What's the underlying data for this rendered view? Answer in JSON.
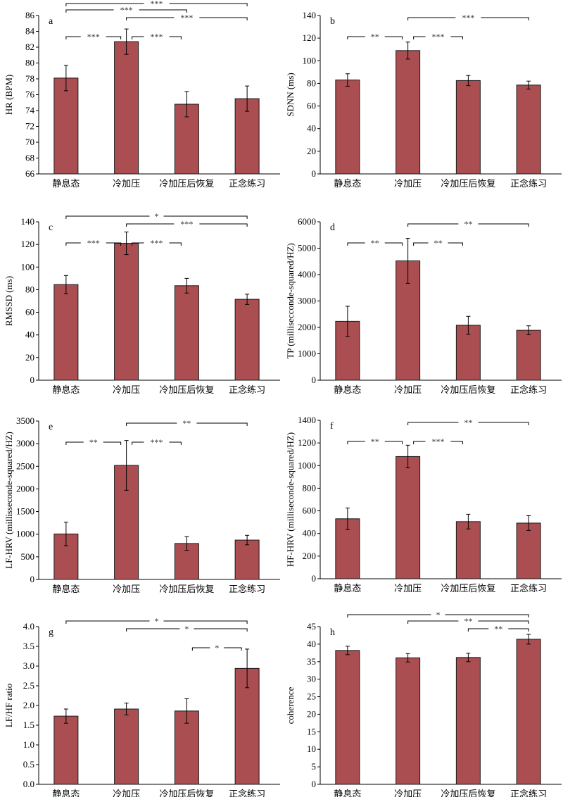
{
  "figure": {
    "bar_color": "#ab4e52",
    "bar_stroke": "#1a1a1a",
    "categories": [
      "静息态",
      "冷加压",
      "冷加压后恢复",
      "正念练习"
    ]
  },
  "chart_data": [
    {
      "panel": "a",
      "type": "bar",
      "ylabel": "HR (BPM)",
      "ylim": [
        66,
        86
      ],
      "yticks": [
        66,
        68,
        70,
        72,
        74,
        76,
        78,
        80,
        82,
        84,
        86
      ],
      "ytick_decimals": 0,
      "categories": [
        "静息态",
        "冷加压",
        "冷加压后恢复",
        "正念练习"
      ],
      "values": [
        78.1,
        82.7,
        74.8,
        75.5
      ],
      "errors": [
        1.6,
        1.6,
        1.6,
        1.6
      ],
      "significance": [
        {
          "from": 0,
          "to": 3,
          "label": "***",
          "level": 0
        },
        {
          "from": 0,
          "to": 2,
          "label": "***",
          "level": 1
        },
        {
          "from": 1,
          "to": 3,
          "label": "***",
          "level": 2
        },
        {
          "from": 0,
          "to": 1,
          "label": "***",
          "level": 3
        },
        {
          "from": 1,
          "to": 2,
          "label": "***",
          "level": 3
        }
      ]
    },
    {
      "panel": "b",
      "type": "bar",
      "ylabel": "SDNN (ms)",
      "ylim": [
        0,
        140
      ],
      "yticks": [
        0,
        20,
        40,
        60,
        80,
        100,
        120,
        140
      ],
      "ytick_decimals": 0,
      "categories": [
        "静息态",
        "冷加压",
        "冷加压后恢复",
        "正念练习"
      ],
      "values": [
        83,
        109,
        82.5,
        78.5
      ],
      "errors": [
        5.5,
        7.5,
        4.5,
        3.5
      ],
      "significance": [
        {
          "from": 1,
          "to": 3,
          "label": "***",
          "level": 2
        },
        {
          "from": 0,
          "to": 1,
          "label": "**",
          "level": 3
        },
        {
          "from": 1,
          "to": 2,
          "label": "***",
          "level": 3
        }
      ]
    },
    {
      "panel": "c",
      "type": "bar",
      "ylabel": "RMSSD (ms)",
      "ylim": [
        0,
        140
      ],
      "yticks": [
        0,
        20,
        40,
        60,
        80,
        100,
        120,
        140
      ],
      "ytick_decimals": 0,
      "categories": [
        "静息态",
        "冷加压",
        "冷加压后恢复",
        "正念练习"
      ],
      "values": [
        84.5,
        121,
        83.5,
        71.5
      ],
      "errors": [
        8,
        10,
        6.5,
        4.5
      ],
      "significance": [
        {
          "from": 0,
          "to": 3,
          "label": "*",
          "level": 1
        },
        {
          "from": 1,
          "to": 3,
          "label": "***",
          "level": 2
        },
        {
          "from": 0,
          "to": 1,
          "label": "***",
          "level": 3
        },
        {
          "from": 1,
          "to": 2,
          "label": "***",
          "level": 3
        }
      ]
    },
    {
      "panel": "d",
      "type": "bar",
      "ylabel": "TP (millisecconde-squared/HZ)",
      "ylim": [
        0,
        6000
      ],
      "yticks": [
        0,
        1000,
        2000,
        3000,
        4000,
        5000,
        6000
      ],
      "ytick_decimals": 0,
      "categories": [
        "静息态",
        "冷加压",
        "冷加压后恢复",
        "正念练习"
      ],
      "values": [
        2230,
        4520,
        2080,
        1890
      ],
      "errors": [
        570,
        850,
        340,
        170
      ],
      "significance": [
        {
          "from": 1,
          "to": 3,
          "label": "**",
          "level": 2
        },
        {
          "from": 0,
          "to": 1,
          "label": "**",
          "level": 3
        },
        {
          "from": 1,
          "to": 2,
          "label": "**",
          "level": 3
        }
      ]
    },
    {
      "panel": "e",
      "type": "bar",
      "ylabel": "LF-HRV (millisseconde-squared/HZ)",
      "ylim": [
        0,
        3500
      ],
      "yticks": [
        0,
        500,
        1000,
        1500,
        2000,
        2500,
        3000,
        3500
      ],
      "ytick_decimals": 0,
      "categories": [
        "静息态",
        "冷加压",
        "冷加压后恢复",
        "正念练习"
      ],
      "values": [
        1005,
        2520,
        795,
        870
      ],
      "errors": [
        260,
        550,
        150,
        105
      ],
      "significance": [
        {
          "from": 1,
          "to": 3,
          "label": "**",
          "level": 2
        },
        {
          "from": 0,
          "to": 1,
          "label": "**",
          "level": 3
        },
        {
          "from": 1,
          "to": 2,
          "label": "***",
          "level": 3
        }
      ]
    },
    {
      "panel": "f",
      "type": "bar",
      "ylabel": "HF-HRV (milliseconde-squared/HZ)",
      "ylim": [
        0,
        1400
      ],
      "yticks": [
        0,
        200,
        400,
        600,
        800,
        1000,
        1200,
        1400
      ],
      "ytick_decimals": 0,
      "categories": [
        "静息态",
        "冷加压",
        "冷加压后恢复",
        "正念练习"
      ],
      "values": [
        530,
        1080,
        505,
        492
      ],
      "errors": [
        95,
        100,
        65,
        65
      ],
      "significance": [
        {
          "from": 1,
          "to": 3,
          "label": "**",
          "level": 2
        },
        {
          "from": 0,
          "to": 1,
          "label": "**",
          "level": 3
        },
        {
          "from": 1,
          "to": 2,
          "label": "***",
          "level": 3
        }
      ]
    },
    {
      "panel": "g",
      "type": "bar",
      "ylabel": "LF/HF ratio",
      "ylim": [
        0,
        4.0
      ],
      "yticks": [
        0,
        0.5,
        1.0,
        1.5,
        2.0,
        2.5,
        3.0,
        3.5,
        4.0
      ],
      "ytick_decimals": 1,
      "categories": [
        "静息态",
        "冷加压",
        "冷加压后恢复",
        "正念练习"
      ],
      "values": [
        1.73,
        1.91,
        1.86,
        2.94
      ],
      "errors": [
        0.18,
        0.15,
        0.31,
        0.49
      ],
      "significance": [
        {
          "from": 0,
          "to": 3,
          "label": "*",
          "level": 1
        },
        {
          "from": 1,
          "to": 3,
          "label": "*",
          "level": 2
        },
        {
          "from": 2,
          "to": 3,
          "label": "*",
          "level": 3
        }
      ]
    },
    {
      "panel": "h",
      "type": "bar",
      "ylabel": "coherence",
      "ylim": [
        0,
        45
      ],
      "yticks": [
        0,
        5,
        10,
        15,
        20,
        25,
        30,
        35,
        40,
        45
      ],
      "ytick_decimals": 0,
      "categories": [
        "静息态",
        "冷加压",
        "冷加压后恢复",
        "正念练习"
      ],
      "values": [
        38.2,
        36.1,
        36.2,
        41.4
      ],
      "errors": [
        1.2,
        1.2,
        1.2,
        1.4
      ],
      "significance": [
        {
          "from": 0,
          "to": 3,
          "label": "*",
          "level": 0
        },
        {
          "from": 1,
          "to": 3,
          "label": "**",
          "level": 1
        },
        {
          "from": 2,
          "to": 3,
          "label": "**",
          "level": 2
        }
      ]
    }
  ]
}
